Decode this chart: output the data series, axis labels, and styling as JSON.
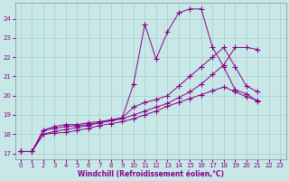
{
  "xlabel": "Windchill (Refroidissement éolien,°C)",
  "bg_color": "#c8e8e8",
  "line_color": "#880088",
  "grid_color": "#aacccc",
  "ylim": [
    16.7,
    24.8
  ],
  "xlim": [
    -0.5,
    23.5
  ],
  "yticks": [
    17,
    18,
    19,
    20,
    21,
    22,
    23,
    24
  ],
  "xticks": [
    0,
    1,
    2,
    3,
    4,
    5,
    6,
    7,
    8,
    9,
    10,
    11,
    12,
    13,
    14,
    15,
    16,
    17,
    18,
    19,
    20,
    21,
    22,
    23
  ],
  "lines": [
    {
      "x": [
        0,
        1,
        2,
        3,
        4,
        5,
        6,
        7,
        8,
        9,
        10,
        11,
        12,
        13,
        14,
        15,
        16,
        17,
        18,
        19,
        20,
        21,
        22,
        23
      ],
      "y": [
        17.1,
        17.1,
        18.2,
        18.4,
        18.5,
        18.5,
        18.6,
        18.65,
        18.75,
        18.85,
        20.6,
        23.7,
        21.9,
        23.3,
        24.3,
        24.5,
        24.5,
        22.5,
        21.5,
        20.3,
        20.1,
        19.7,
        null,
        null
      ]
    },
    {
      "x": [
        0,
        1,
        2,
        3,
        4,
        5,
        6,
        7,
        8,
        9,
        10,
        11,
        12,
        13,
        14,
        15,
        16,
        17,
        18,
        19,
        20,
        21,
        22,
        23
      ],
      "y": [
        17.1,
        17.1,
        18.2,
        18.3,
        18.4,
        18.45,
        18.5,
        18.6,
        18.7,
        18.85,
        19.4,
        19.65,
        19.8,
        20.0,
        20.5,
        21.0,
        21.5,
        22.0,
        22.5,
        21.5,
        20.5,
        20.2,
        null,
        null
      ]
    },
    {
      "x": [
        0,
        1,
        2,
        3,
        4,
        5,
        6,
        7,
        8,
        9,
        10,
        11,
        12,
        13,
        14,
        15,
        16,
        17,
        18,
        19,
        20,
        21,
        22,
        23
      ],
      "y": [
        17.1,
        17.1,
        18.0,
        18.15,
        18.25,
        18.35,
        18.45,
        18.6,
        18.7,
        18.8,
        19.0,
        19.2,
        19.4,
        19.6,
        19.9,
        20.2,
        20.6,
        21.1,
        21.6,
        22.5,
        22.5,
        22.4,
        null,
        null
      ]
    },
    {
      "x": [
        0,
        1,
        2,
        3,
        4,
        5,
        6,
        7,
        8,
        9,
        10,
        11,
        12,
        13,
        14,
        15,
        16,
        17,
        18,
        19,
        20,
        21,
        22,
        23
      ],
      "y": [
        17.1,
        17.1,
        18.0,
        18.05,
        18.1,
        18.2,
        18.3,
        18.45,
        18.55,
        18.65,
        18.8,
        19.0,
        19.2,
        19.45,
        19.65,
        19.85,
        20.05,
        20.25,
        20.45,
        20.2,
        19.95,
        19.75,
        null,
        null
      ]
    }
  ]
}
